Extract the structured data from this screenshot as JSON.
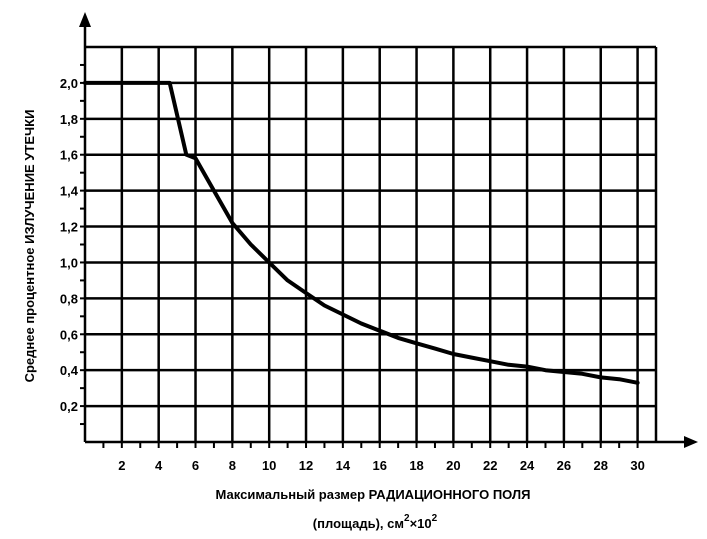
{
  "chart_data": {
    "type": "line",
    "xlabel_line1": "Максимальный размер РАДИАЦИОННОГО ПОЛЯ",
    "xlabel_line2": "(площадь), см",
    "xlabel_sup": "2",
    "xlabel_tail": "×10",
    "xlabel_sup2": "2",
    "ylabel": "Среднее процентное ИЗЛУЧЕНИЕ УТЕЧКИ",
    "xlim": [
      0,
      31
    ],
    "ylim": [
      0,
      2.2
    ],
    "x_ticks": [
      "2",
      "4",
      "6",
      "8",
      "10",
      "12",
      "14",
      "16",
      "18",
      "20",
      "22",
      "24",
      "26",
      "28",
      "30"
    ],
    "x_tick_values": [
      2,
      4,
      6,
      8,
      10,
      12,
      14,
      16,
      18,
      20,
      22,
      24,
      26,
      28,
      30
    ],
    "y_ticks": [
      "0,2",
      "0,4",
      "0,6",
      "0,8",
      "1,0",
      "1,2",
      "1,4",
      "1,6",
      "1,8",
      "2,0"
    ],
    "y_tick_values": [
      0.2,
      0.4,
      0.6,
      0.8,
      1.0,
      1.2,
      1.4,
      1.6,
      1.8,
      2.0
    ],
    "grid": true,
    "series": [
      {
        "x": [
          0,
          4.6,
          5.5,
          6,
          7,
          8,
          9,
          10,
          11,
          12,
          13,
          14,
          15,
          16,
          17,
          18,
          19,
          20,
          21,
          22,
          23,
          24,
          25,
          26,
          27,
          28,
          29,
          30
        ],
        "y": [
          2.0,
          2.0,
          1.6,
          1.58,
          1.4,
          1.22,
          1.1,
          1.0,
          0.9,
          0.83,
          0.76,
          0.71,
          0.66,
          0.62,
          0.58,
          0.55,
          0.52,
          0.49,
          0.47,
          0.45,
          0.43,
          0.42,
          0.4,
          0.39,
          0.38,
          0.36,
          0.35,
          0.33
        ]
      }
    ]
  }
}
